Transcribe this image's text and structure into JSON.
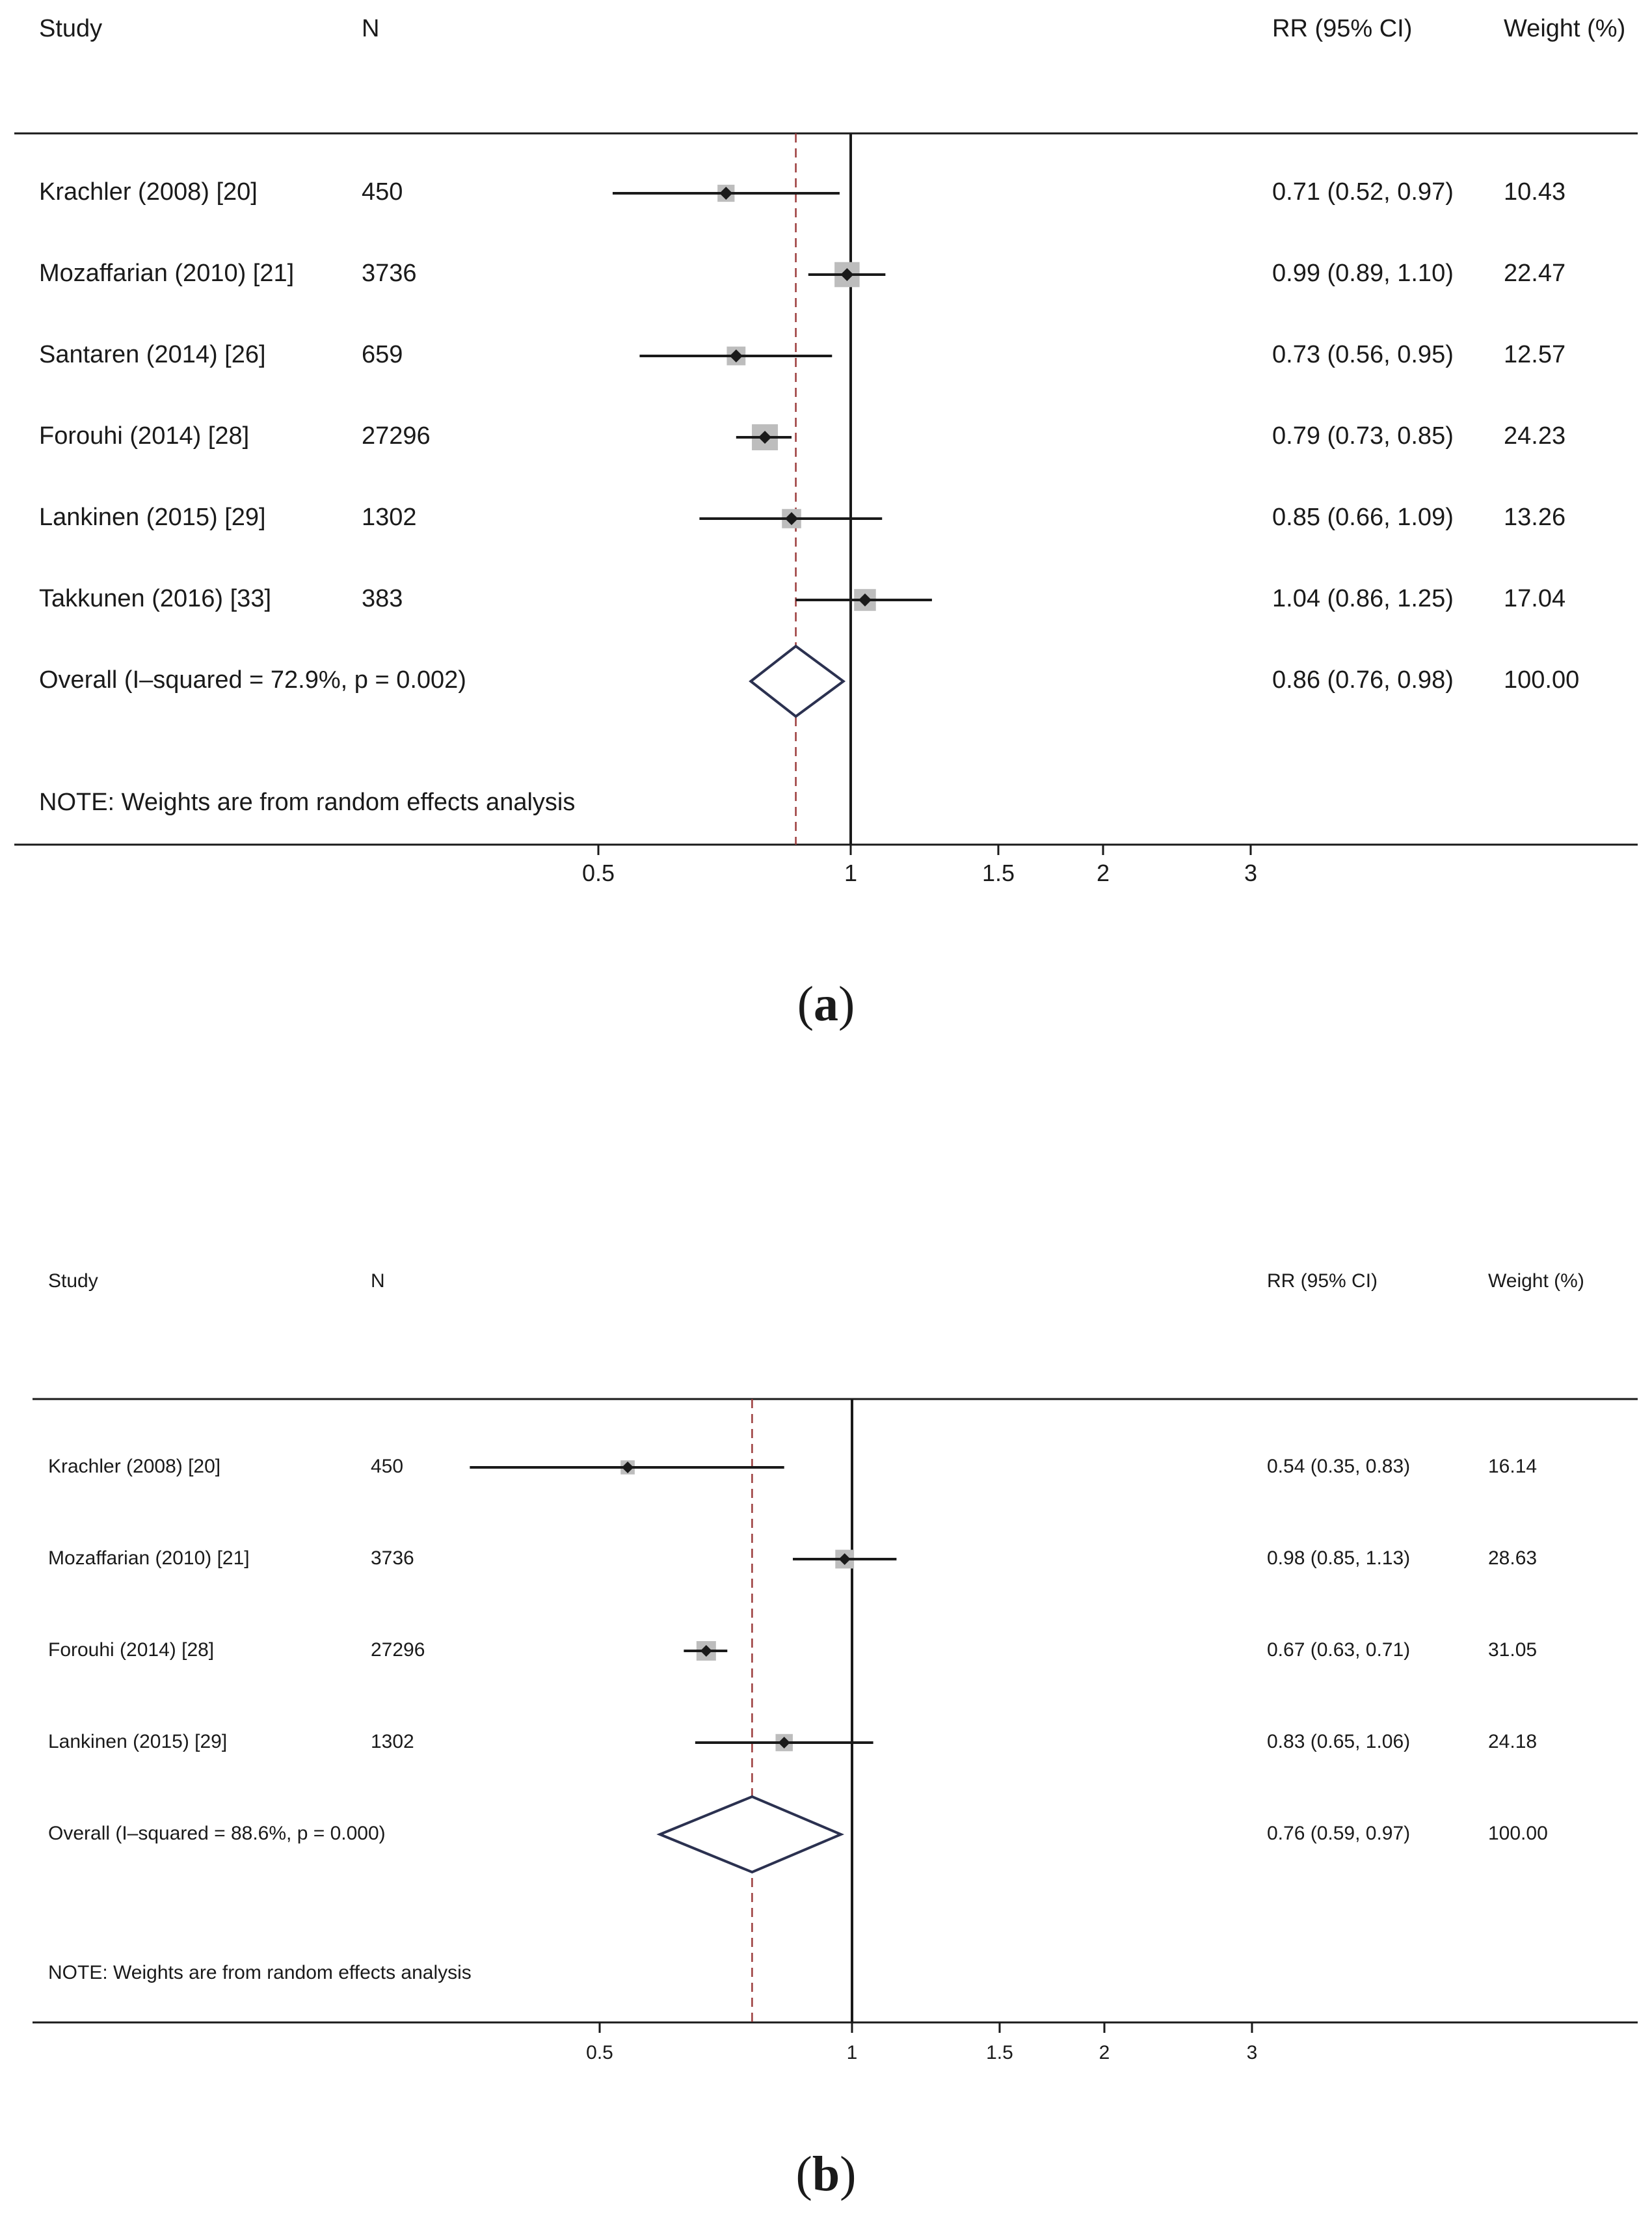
{
  "chart_data": [
    {
      "type": "forest",
      "panel_label": "a",
      "headers": {
        "study": "Study",
        "n": "N",
        "estimate": "RR (95% CI)",
        "weight": "Weight (%)"
      },
      "studies": [
        {
          "study": "Krachler (2008) [20]",
          "n": "450",
          "rr": 0.71,
          "lo": 0.52,
          "hi": 0.97,
          "ci_text": "0.71 (0.52, 0.97)",
          "weight": "10.43"
        },
        {
          "study": "Mozaffarian (2010) [21]",
          "n": "3736",
          "rr": 0.99,
          "lo": 0.89,
          "hi": 1.1,
          "ci_text": "0.99 (0.89, 1.10)",
          "weight": "22.47"
        },
        {
          "study": "Santaren (2014) [26]",
          "n": "659",
          "rr": 0.73,
          "lo": 0.56,
          "hi": 0.95,
          "ci_text": "0.73 (0.56, 0.95)",
          "weight": "12.57"
        },
        {
          "study": "Forouhi (2014) [28]",
          "n": "27296",
          "rr": 0.79,
          "lo": 0.73,
          "hi": 0.85,
          "ci_text": "0.79 (0.73, 0.85)",
          "weight": "24.23"
        },
        {
          "study": "Lankinen (2015) [29]",
          "n": "1302",
          "rr": 0.85,
          "lo": 0.66,
          "hi": 1.09,
          "ci_text": "0.85 (0.66, 1.09)",
          "weight": "13.26"
        },
        {
          "study": "Takkunen (2016) [33]",
          "n": "383",
          "rr": 1.04,
          "lo": 0.86,
          "hi": 1.25,
          "ci_text": "1.04 (0.86, 1.25)",
          "weight": "17.04"
        }
      ],
      "overall": {
        "label": "Overall  (I–squared = 72.9%, p = 0.002)",
        "rr": 0.86,
        "lo": 0.76,
        "hi": 0.98,
        "ci_text": "0.86 (0.76, 0.98)",
        "weight": "100.00"
      },
      "note": "NOTE: Weights are from random effects analysis",
      "x_scale": "log",
      "x_ticks": [
        0.5,
        1,
        1.5,
        2,
        3
      ],
      "x_tick_labels": [
        "0.5",
        "1",
        "1.5",
        "2",
        "3"
      ],
      "xlim": [
        0.36,
        3.4
      ],
      "null_line": 1,
      "grid": false,
      "colors": {
        "ink": "#1a1a1a",
        "box": "#bdbdbd",
        "diamond": "#2b3150",
        "overall_line": "#9b3b3b"
      }
    },
    {
      "type": "forest",
      "panel_label": "b",
      "headers": {
        "study": "Study",
        "n": "N",
        "estimate": "RR (95% CI)",
        "weight": "Weight (%)"
      },
      "studies": [
        {
          "study": "Krachler (2008) [20]",
          "n": "450",
          "rr": 0.54,
          "lo": 0.35,
          "hi": 0.83,
          "ci_text": "0.54 (0.35, 0.83)",
          "weight": "16.14"
        },
        {
          "study": "Mozaffarian (2010) [21]",
          "n": "3736",
          "rr": 0.98,
          "lo": 0.85,
          "hi": 1.13,
          "ci_text": "0.98 (0.85, 1.13)",
          "weight": "28.63"
        },
        {
          "study": "Forouhi (2014) [28]",
          "n": "27296",
          "rr": 0.67,
          "lo": 0.63,
          "hi": 0.71,
          "ci_text": "0.67 (0.63, 0.71)",
          "weight": "31.05"
        },
        {
          "study": "Lankinen (2015) [29]",
          "n": "1302",
          "rr": 0.83,
          "lo": 0.65,
          "hi": 1.06,
          "ci_text": "0.83 (0.65, 1.06)",
          "weight": "24.18"
        }
      ],
      "overall": {
        "label": "Overall  (I–squared = 88.6%, p = 0.000)",
        "rr": 0.76,
        "lo": 0.59,
        "hi": 0.97,
        "ci_text": "0.76 (0.59, 0.97)",
        "weight": "100.00"
      },
      "note": "NOTE: Weights are from random effects analysis",
      "x_scale": "log",
      "x_ticks": [
        0.5,
        1,
        1.5,
        2,
        3
      ],
      "x_tick_labels": [
        "0.5",
        "1",
        "1.5",
        "2",
        "3"
      ],
      "xlim": [
        0.25,
        3.4
      ],
      "null_line": 1,
      "grid": false,
      "colors": {
        "ink": "#1a1a1a",
        "box": "#bdbdbd",
        "diamond": "#2b3150",
        "overall_line": "#9b3b3b"
      }
    }
  ]
}
